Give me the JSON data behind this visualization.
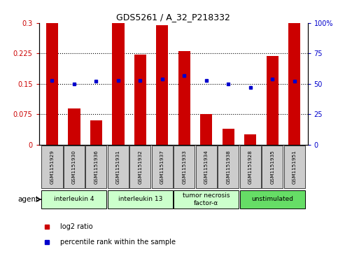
{
  "title": "GDS5261 / A_32_P218332",
  "samples": [
    "GSM1151929",
    "GSM1151930",
    "GSM1151936",
    "GSM1151931",
    "GSM1151932",
    "GSM1151937",
    "GSM1151933",
    "GSM1151934",
    "GSM1151938",
    "GSM1151928",
    "GSM1151935",
    "GSM1151951"
  ],
  "log2_ratio": [
    0.3,
    0.09,
    0.06,
    0.3,
    0.222,
    0.295,
    0.23,
    0.075,
    0.04,
    0.025,
    0.218,
    0.3
  ],
  "percentile_rank": [
    53,
    50,
    52,
    53,
    53,
    54,
    57,
    53,
    50,
    47,
    54,
    52
  ],
  "groups_info": [
    {
      "label": "interleukin 4",
      "start": 0,
      "end": 2,
      "color": "#ccffcc"
    },
    {
      "label": "interleukin 13",
      "start": 3,
      "end": 5,
      "color": "#ccffcc"
    },
    {
      "label": "tumor necrosis\nfactor-α",
      "start": 6,
      "end": 8,
      "color": "#ccffcc"
    },
    {
      "label": "unstimulated",
      "start": 9,
      "end": 11,
      "color": "#66dd66"
    }
  ],
  "bar_color": "#cc0000",
  "dot_color": "#0000cc",
  "ylim_left": [
    0,
    0.3
  ],
  "ylim_right": [
    0,
    100
  ],
  "yticks_left": [
    0,
    0.075,
    0.15,
    0.225,
    0.3
  ],
  "ytick_labels_left": [
    "0",
    "0.075",
    "0.15",
    "0.225",
    "0.3"
  ],
  "ytick_labels_right": [
    "0",
    "25",
    "50",
    "75",
    "100%"
  ],
  "grid_values": [
    0.075,
    0.15,
    0.225
  ],
  "legend_log2": "log2 ratio",
  "legend_pct": "percentile rank within the sample",
  "agent_label": "agent",
  "sample_box_color": "#cccccc",
  "bar_width": 0.55
}
